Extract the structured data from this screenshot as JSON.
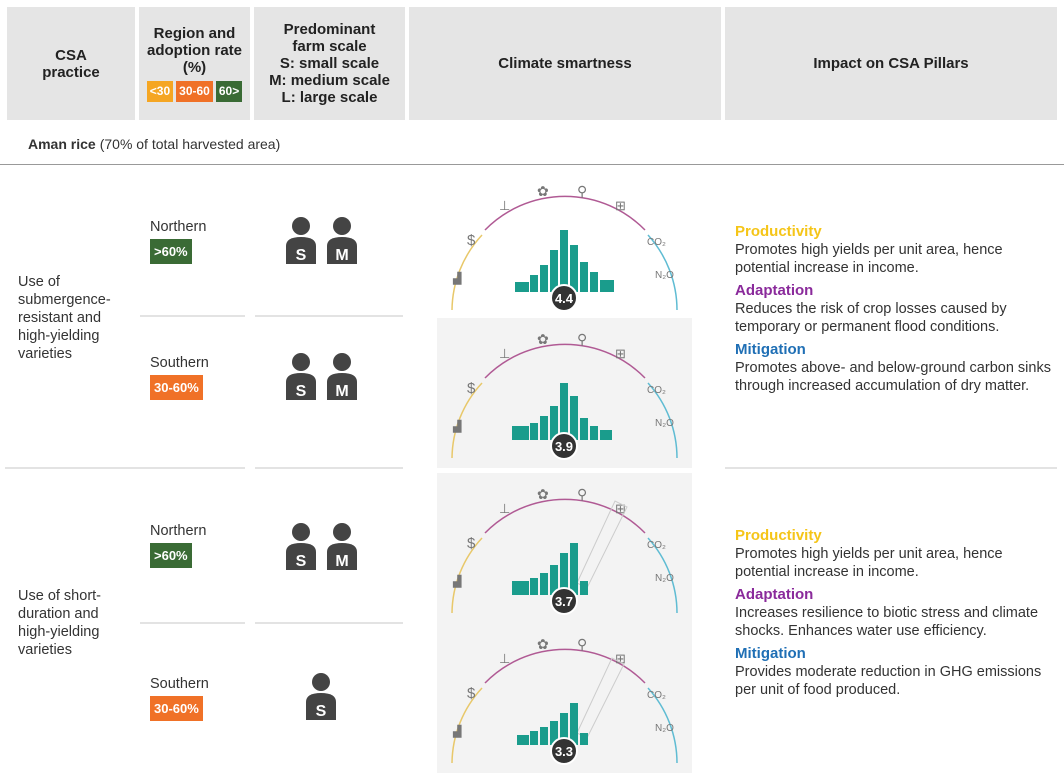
{
  "header": {
    "col1": "CSA practice",
    "col2": "Region and adoption rate (%)",
    "col3_title": "Predominant farm scale",
    "col3_s": "S: small scale",
    "col3_m": "M: medium scale",
    "col3_l": "L: large scale",
    "col4": "Climate smartness",
    "col5": "Impact on CSA Pillars",
    "legend": [
      {
        "label": "<30",
        "color": "#f5a623"
      },
      {
        "label": "30-60",
        "color": "#f07127"
      },
      {
        "label": "60>",
        "color": "#3a6b35"
      }
    ]
  },
  "section": {
    "name": "Aman rice",
    "detail": "(70% of total harvested area)"
  },
  "colors": {
    "productivity": "#f5c518",
    "adaptation": "#8a2a9b",
    "mitigation": "#1f6fb5",
    "high": "#3a6b35",
    "mid": "#f07127",
    "teal": "#1a9c8c"
  },
  "practices": [
    {
      "name": "Use of submergence-resistant and high-yielding varieties",
      "rows": [
        {
          "region": "Northern",
          "rate": ">60%",
          "rate_color": "#3a6b35",
          "scales": [
            "S",
            "M"
          ],
          "score": "4.4"
        },
        {
          "region": "Southern",
          "rate": "30-60%",
          "rate_color": "#f07127",
          "scales": [
            "S",
            "M"
          ],
          "score": "3.9"
        }
      ],
      "impact": {
        "productivity_label": "Productivity",
        "productivity": "Promotes high yields per unit area, hence potential increase in income.",
        "adaptation_label": "Adaptation",
        "adaptation": "Reduces the risk of crop losses caused by temporary or permanent flood conditions.",
        "mitigation_label": "Mitigation",
        "mitigation": "Promotes above- and below-ground carbon sinks through increased accumulation of dry matter."
      }
    },
    {
      "name": "Use of short-duration and high-yielding varieties",
      "rows": [
        {
          "region": "Northern",
          "rate": ">60%",
          "rate_color": "#3a6b35",
          "scales": [
            "S",
            "M"
          ],
          "score": "3.7"
        },
        {
          "region": "Southern",
          "rate": "30-60%",
          "rate_color": "#f07127",
          "scales": [
            "S"
          ],
          "score": "3.3"
        }
      ],
      "impact": {
        "productivity_label": "Productivity",
        "productivity": "Promotes high yields per unit area, hence potential increase in income.",
        "adaptation_label": "Adaptation",
        "adaptation": "Increases resilience to biotic stress and climate shocks. Enhances water use efficiency.",
        "mitigation_label": "Mitigation",
        "mitigation": "Provides moderate reduction in GHG emissions per unit of food produced."
      }
    }
  ]
}
